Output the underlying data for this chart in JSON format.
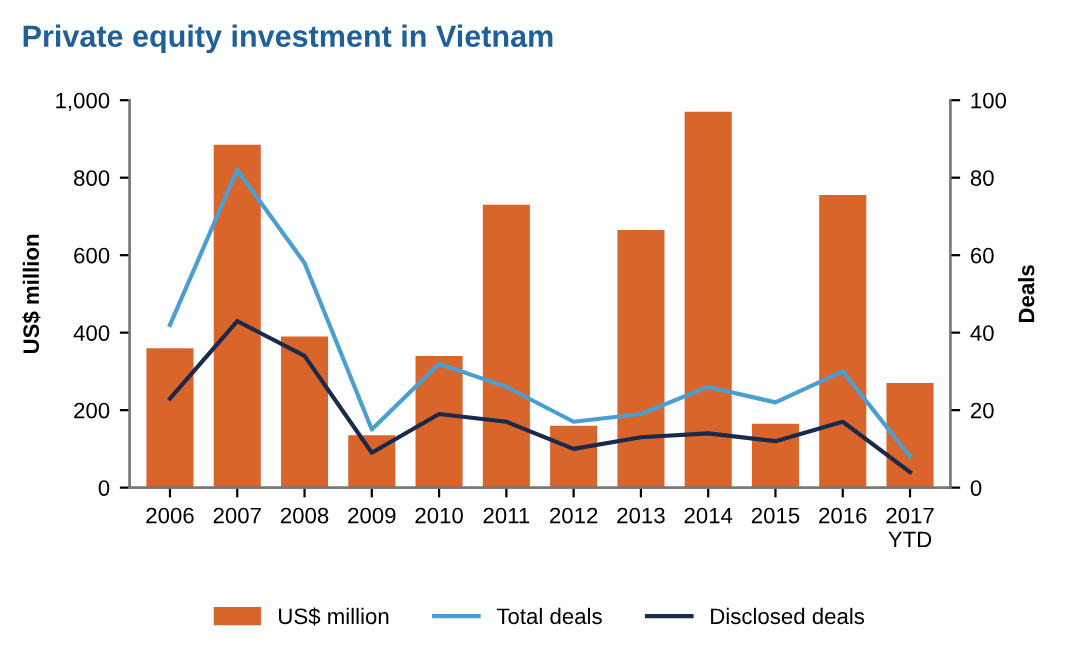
{
  "chart_data": {
    "type": "bar",
    "title": "Private equity investment in Vietnam",
    "ylabel": "US$ million",
    "y2label": "Deals",
    "categories": [
      "2006",
      "2007",
      "2008",
      "2009",
      "2010",
      "2011",
      "2012",
      "2013",
      "2014",
      "2015",
      "2016",
      "2017\nYTD"
    ],
    "series": [
      {
        "name": "US$ million",
        "color": "#d9652b",
        "values": [
          360,
          885,
          390,
          135,
          340,
          730,
          160,
          665,
          970,
          165,
          755,
          270
        ]
      },
      {
        "name": "Total deals",
        "type": "line",
        "axis": "y2",
        "color": "#4a9fd0",
        "values": [
          42,
          82,
          58,
          15,
          32,
          26,
          17,
          19,
          26,
          22,
          30,
          8
        ]
      },
      {
        "name": "Disclosed deals",
        "type": "line",
        "axis": "y2",
        "color": "#1a2a4a",
        "values": [
          23,
          43,
          34,
          9,
          19,
          17,
          10,
          13,
          14,
          12,
          17,
          4
        ]
      }
    ],
    "ylim": [
      0,
      1000
    ],
    "yticks": [
      0,
      200,
      400,
      600,
      {
        "value": 800,
        "label": "800"
      },
      {
        "value": 1000,
        "label": "1,000"
      }
    ],
    "y2lim": [
      0,
      100
    ],
    "y2ticks": [
      0,
      20,
      40,
      60,
      80,
      100
    ],
    "grid": false,
    "legend": "bottom",
    "marker": "none",
    "line_style": "solid"
  }
}
